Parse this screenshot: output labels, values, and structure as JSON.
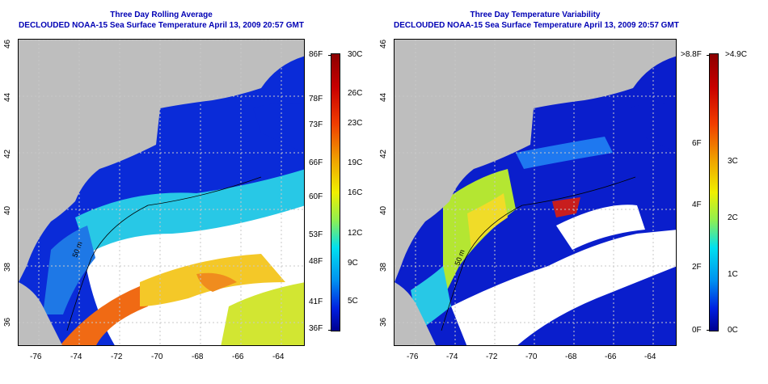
{
  "left_panel": {
    "title": "Three Day Rolling Average",
    "subtitle": "DECLOUDED NOAA-15 Sea Surface Temperature April 13, 2009 20:57 GMT",
    "contour_label": "50 m",
    "lat_ticks": [
      "46",
      "44",
      "42",
      "40",
      "38",
      "36"
    ],
    "lon_ticks": [
      "-76",
      "-74",
      "-72",
      "-70",
      "-68",
      "-66",
      "-64"
    ],
    "colorbar": {
      "f_labels": [
        "86F",
        "78F",
        "73F",
        "66F",
        "60F",
        "53F",
        "48F",
        "41F",
        "36F"
      ],
      "c_labels": [
        "30C",
        "26C",
        "23C",
        "19C",
        "16C",
        "12C",
        "9C",
        "5C"
      ]
    }
  },
  "right_panel": {
    "title": "Three Day Temperature Variability",
    "subtitle": "DECLOUDED NOAA-15 Sea Surface Temperature April 13, 2009 20:57 GMT",
    "contour_label": "50 m",
    "lat_ticks": [
      "46",
      "44",
      "42",
      "40",
      "38",
      "36"
    ],
    "lon_ticks": [
      "-76",
      "-74",
      "-72",
      "-70",
      "-68",
      "-66",
      "-64"
    ],
    "colorbar": {
      "f_labels": [
        ">8.8F",
        "6F",
        "4F",
        "2F",
        "0F"
      ],
      "c_labels": [
        ">4.9C",
        "3C",
        "2C",
        "1C",
        "0C"
      ]
    }
  },
  "colors": {
    "title": "#0000b4",
    "land": "#bebebe",
    "cold": "#0a1ed2",
    "warm": "#e65a14"
  }
}
